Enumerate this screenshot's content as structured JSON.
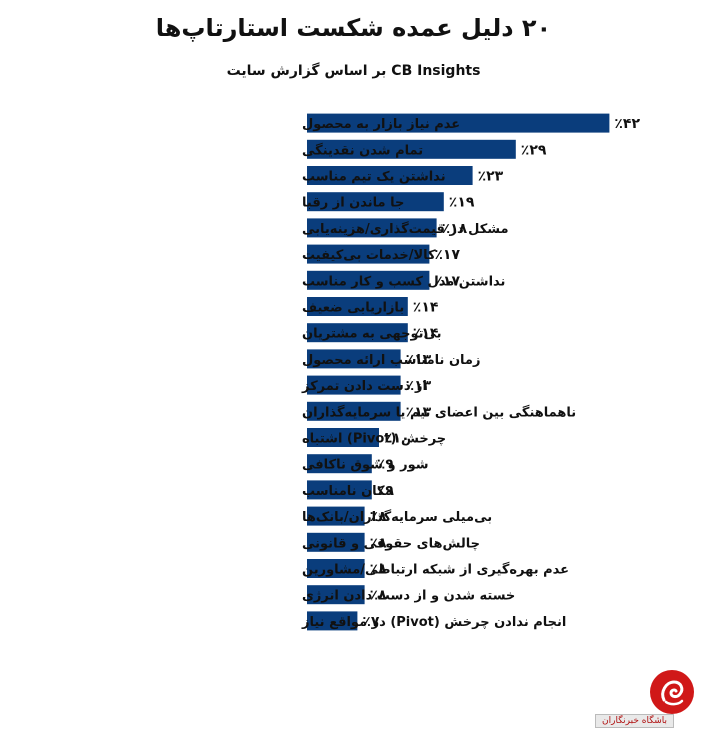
{
  "header": {
    "title": "۲۰ دلیل عمده شکست استارتاپ‌ها",
    "subtitle": "بر اساس گزارش سایت  CB Insights"
  },
  "colors": {
    "bar": "#0a3d7c",
    "text": "#111111",
    "watermark_red": "#d01818"
  },
  "chart_data": {
    "type": "bar",
    "orientation": "horizontal",
    "title": "۲۰ دلیل عمده شکست استارتاپ‌ها",
    "subtitle": "بر اساس گزارش سایت  CB Insights",
    "unit": "%",
    "xlim": [
      0,
      42
    ],
    "grid": false,
    "legend": "none",
    "categories": [
      "عدم نیاز بازار به محصول",
      "تمام شدن نقدینگی",
      "نداشتن یک تیم مناسب",
      "جا ماندن از رقبا",
      "مشکل در قیمت‌گذاری/هزینه‌یابی",
      "کالا/خدمات بی‌کیفیت",
      "نداشتن مدل کسب و کار مناسب",
      "بازاریابی ضعیف",
      "بی‌توجهی به مشتریان",
      "زمان نامناسب ارائه محصول",
      "از دست دادن تمرکز",
      "ناهماهنگی بین اعضای تیم یا سرمایه‌گذاران",
      "چرخش (Pivot) اشتباه",
      "شور و شوق ناکافی",
      "مکان نامناسب",
      "بی‌میلی سرمایه‌گذاران/بانک‌ها",
      "چالش‌های حقوقی و قانونی",
      "عدم بهره‌گیری از شبکه ارتباطی/مشاورین",
      "خسته شدن و از دست دادن انرژی",
      "انجام ندادن چرخش (Pivot) در مواقع نیاز"
    ],
    "values": [
      42,
      29,
      23,
      19,
      18,
      17,
      17,
      14,
      14,
      13,
      13,
      13,
      10,
      9,
      9,
      8,
      8,
      8,
      8,
      7
    ],
    "value_labels": [
      "٪۴۲",
      "٪۲۹",
      "٪۲۳",
      "٪۱۹",
      "٪۱۸",
      "٪۱۷",
      "٪۱۷",
      "٪۱۴",
      "٪۱۴",
      "٪۱۳",
      "٪۱۳",
      "٪۱۳",
      "٪۱۰",
      "٪۹",
      "٪۹",
      "٪۸",
      "٪۸",
      "٪۸",
      "٪۸",
      "٪۷"
    ]
  },
  "watermark": {
    "text": "باشگاه خبرنگاران",
    "icon": "news-agency-logo-icon"
  }
}
